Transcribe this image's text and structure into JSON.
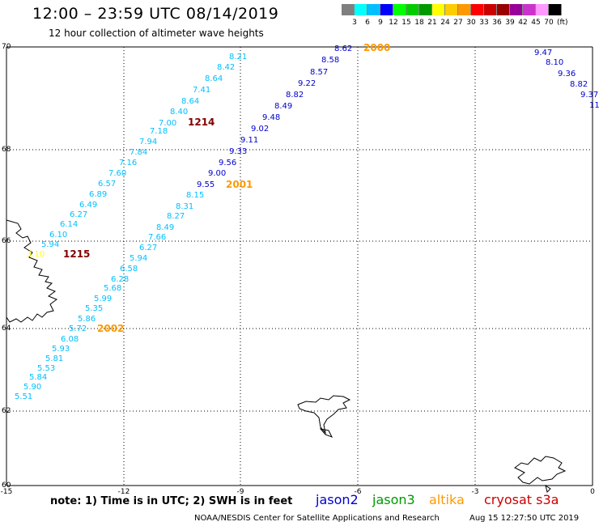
{
  "title": "12:00 – 23:59 UTC 08/14/2019",
  "subtitle": "12 hour collection of altimeter wave heights",
  "color_scale": {
    "labels": [
      "3",
      "6",
      "9",
      "12",
      "15",
      "18",
      "21",
      "24",
      "27",
      "30",
      "33",
      "36",
      "39",
      "42",
      "45",
      "70"
    ],
    "colors": [
      "#7f7f7f",
      "#00ffff",
      "#00bfff",
      "#0000ff",
      "#00ff00",
      "#00cc00",
      "#009900",
      "#ffff00",
      "#ffcc00",
      "#ff9900",
      "#ff0000",
      "#cc0000",
      "#990000",
      "#990099",
      "#cc33cc",
      "#ff99ff",
      "#000000"
    ],
    "unit": "(ft)"
  },
  "axes": {
    "lon_labels": [
      "-15",
      "-12",
      "-9",
      "-6",
      "-3",
      "0"
    ],
    "lat_labels": [
      "70",
      "68",
      "66",
      "64",
      "62",
      "60"
    ]
  },
  "satellites": [
    {
      "name": "jason2",
      "color": "#0000cc"
    },
    {
      "name": "jason3",
      "color": "#009900"
    },
    {
      "name": "altika",
      "color": "#ff9900"
    },
    {
      "name": "cryosat s3a",
      "color": "#cc0000"
    }
  ],
  "note": "note:  1) Time is in UTC;  2) SWH is in feet",
  "credit": "NOAA/NESDIS Center for Satellite Applications and Research",
  "generated": "Aug 15 12:27:50 UTC 2019",
  "tracks": [
    {
      "time": "1214",
      "time_color": "#800000",
      "color": "#00bfff",
      "values": [
        "8.21",
        "8.42",
        "8.64",
        "7.41",
        "8.64",
        "8.40",
        "7.00",
        "7.18",
        "7.94",
        "7.84",
        "7.16",
        "7.60",
        "6.57",
        "6.89",
        "6.49",
        "6.27",
        "6.14",
        "6.10",
        "5.94",
        "3.10"
      ]
    },
    {
      "time": "1215",
      "time_color": "#800000",
      "color": "#00bfff",
      "values": []
    },
    {
      "time": "2000",
      "time_color": "#ff9900",
      "color": "#0000cc",
      "values": [
        "8.62",
        "8.58",
        "8.57",
        "9.22",
        "8.82",
        "8.49",
        "9.48",
        "9.02",
        "9.11",
        "9.33",
        "9.56",
        "9.00",
        "9.55"
      ]
    },
    {
      "time": "2001",
      "time_color": "#ff9900",
      "color": "#00bfff",
      "values": [
        "8.15",
        "8.31",
        "8.27",
        "8.49",
        "7.66",
        "6.27",
        "5.94",
        "6.58",
        "6.28",
        "5.68",
        "5.99",
        "5.35",
        "5.86",
        "5.72"
      ]
    },
    {
      "time": "2002",
      "time_color": "#ff9900",
      "color": "#00bfff",
      "values": [
        "6.08",
        "5.93",
        "5.81",
        "5.53",
        "5.84",
        "5.90",
        "5.51"
      ]
    },
    {
      "time": "",
      "time_color": "#0000cc",
      "color": "#0000cc",
      "values": [
        "9.47",
        "8.10",
        "9.36",
        "8.82",
        "9.37",
        "11"
      ]
    }
  ]
}
